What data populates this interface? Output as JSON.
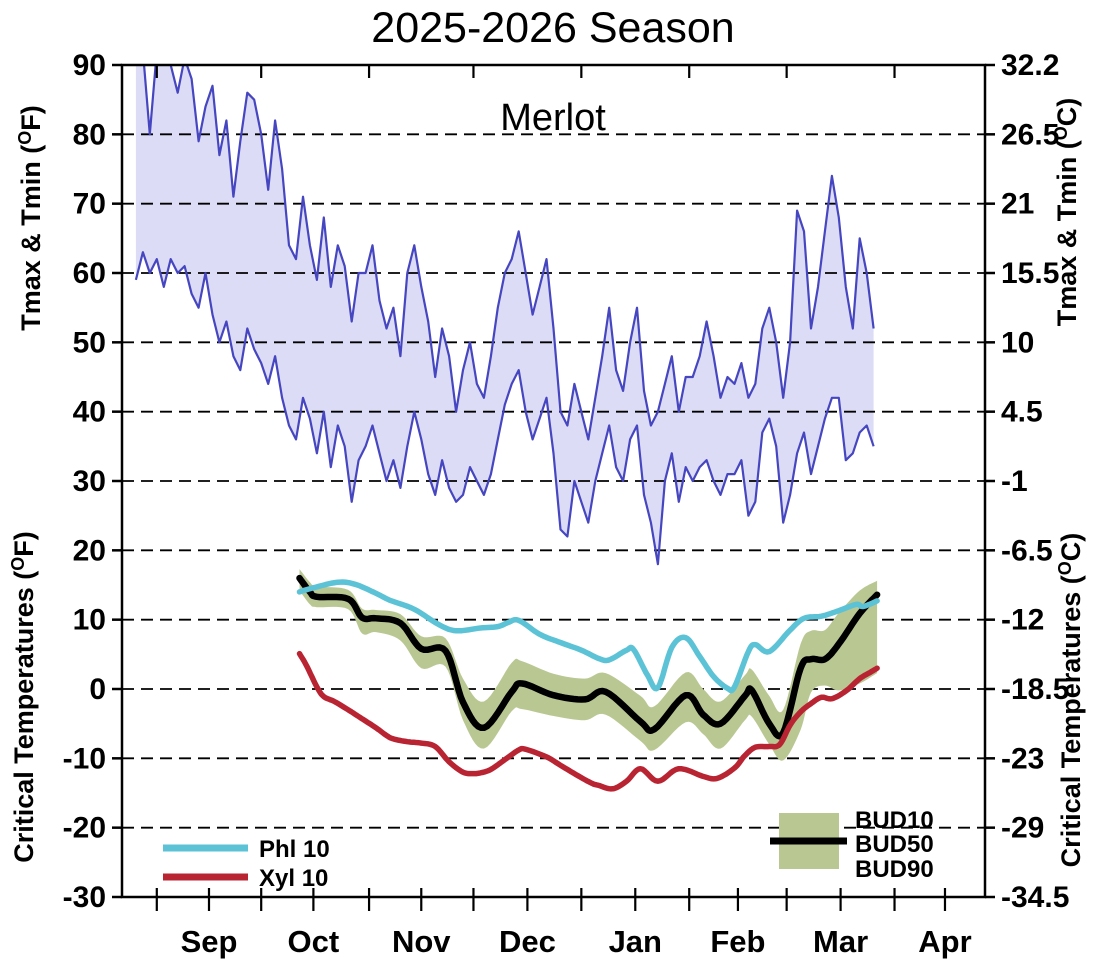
{
  "chart_data": {
    "type": "line",
    "title": "2025-2026 Season",
    "subtitle": "Merlot",
    "x_axis": {
      "month_labels": [
        "Sep",
        "Oct",
        "Nov",
        "Dec",
        "Jan",
        "Feb",
        "Mar",
        "Apr"
      ],
      "month_label_days": [
        22,
        52,
        83,
        113.5,
        144.5,
        174,
        203.5,
        233.5
      ],
      "month_boundary_days": [
        7,
        37,
        68,
        98,
        129,
        160,
        188,
        219
      ],
      "minor_tick_days": [
        22,
        52,
        83,
        113.5,
        144.5,
        174,
        203.5,
        233.5
      ],
      "domain_days": [
        -3,
        245
      ],
      "day0_date": "Aug 25"
    },
    "y_left": {
      "title_top": "Tmax & Tmin (°F)",
      "title_bottom": "Critical Temperatures (°F)",
      "ticks": [
        90,
        80,
        70,
        60,
        50,
        40,
        30,
        20,
        10,
        0,
        -10,
        -20,
        -30
      ],
      "range": [
        -30,
        90
      ]
    },
    "y_right": {
      "title_top": "Tmax & Tmin (°C)",
      "title_bottom": "Critical Temperatures (°C)",
      "tick_labels": [
        "32.2",
        "26.5",
        "21",
        "15.5",
        "10",
        "4.5",
        "-1",
        "-6.5",
        "-12",
        "-18.5",
        "-23",
        "-29",
        "-34.5"
      ]
    },
    "grid": {
      "dashed_levels": [
        80,
        70,
        60,
        50,
        40,
        30,
        20,
        10,
        0,
        -10,
        -20
      ],
      "style": "dashed-black"
    },
    "colors": {
      "tband_fill": "#dcdcf6",
      "tband_line": "#4646c0",
      "phl": "#5cc2d6",
      "xyl": "#b92433",
      "bud_band": "#b9c893",
      "bud50": "#000000"
    },
    "series": [
      {
        "name": "Tmax",
        "unit": "F",
        "x_start_day": 1,
        "x_step": 2,
        "values": [
          91,
          92,
          80,
          92,
          91,
          90,
          86,
          91,
          88,
          79,
          84,
          87,
          77,
          82,
          71,
          79,
          86,
          85,
          80,
          72,
          82,
          75,
          64,
          62,
          71,
          64,
          59,
          68,
          58,
          64,
          61,
          53,
          60,
          60,
          64,
          56,
          52,
          55,
          48,
          60,
          64,
          58,
          53,
          45,
          52,
          48,
          40,
          46,
          50,
          44,
          42,
          48,
          55,
          60,
          62,
          66,
          60,
          54,
          58,
          62,
          52,
          40,
          38,
          44,
          40,
          36,
          42,
          48,
          55,
          46,
          43,
          50,
          55,
          43,
          38,
          40,
          44,
          48,
          40,
          45,
          45,
          48,
          53,
          48,
          42,
          45,
          44,
          47,
          42,
          44,
          52,
          55,
          50,
          42,
          50,
          69,
          66,
          52,
          58,
          66,
          74,
          68,
          58,
          52,
          65,
          60,
          52
        ]
      },
      {
        "name": "Tmin",
        "unit": "F",
        "x_start_day": 1,
        "x_step": 2,
        "values": [
          59,
          63,
          60,
          62,
          58,
          62,
          60,
          61,
          57,
          55,
          60,
          54,
          50,
          53,
          48,
          46,
          52,
          49,
          47,
          44,
          48,
          42,
          38,
          36,
          42,
          39,
          34,
          40,
          32,
          38,
          35,
          27,
          33,
          35,
          38,
          34,
          30,
          33,
          29,
          35,
          40,
          36,
          31,
          28,
          33,
          29,
          27,
          28,
          32,
          30,
          28,
          31,
          36,
          41,
          44,
          46,
          40,
          36,
          39,
          42,
          34,
          23,
          22,
          30,
          27,
          24,
          30,
          34,
          38,
          32,
          30,
          36,
          38,
          28,
          24,
          18,
          30,
          34,
          27,
          32,
          30,
          32,
          33,
          30,
          28,
          31,
          31,
          33,
          25,
          27,
          37,
          39,
          35,
          24,
          28,
          34,
          37,
          31,
          35,
          39,
          42,
          42,
          33,
          34,
          37,
          38,
          35
        ]
      },
      {
        "name": "Phl 10",
        "unit": "F",
        "x_days": [
          48,
          52,
          59,
          64,
          70,
          74,
          81,
          88,
          93,
          100,
          105,
          108,
          111,
          117,
          123,
          129,
          134,
          137,
          142,
          144,
          148,
          151,
          155,
          159,
          163,
          167,
          171,
          173,
          177,
          179,
          183,
          189,
          193,
          198,
          203,
          208,
          210,
          214
        ],
        "values": [
          14.0,
          14.6,
          15.4,
          15.1,
          13.8,
          12.8,
          11.5,
          9.3,
          8.4,
          8.8,
          9.0,
          9.6,
          9.9,
          7.9,
          6.7,
          5.6,
          4.4,
          4.2,
          5.6,
          5.7,
          2.0,
          0.2,
          6.0,
          7.4,
          4.7,
          1.8,
          0.1,
          0.3,
          5.4,
          6.4,
          5.4,
          8.5,
          10.2,
          10.5,
          11.3,
          12.2,
          11.9,
          12.7
        ]
      },
      {
        "name": "Xyl 10",
        "unit": "F",
        "x_days": [
          48,
          50,
          53,
          55,
          58,
          62,
          66,
          70,
          73,
          75,
          79,
          83,
          87,
          91,
          95,
          98,
          100,
          103,
          107,
          111,
          113,
          119,
          123,
          128,
          132,
          134,
          138,
          142,
          146,
          151,
          157,
          164,
          168,
          173,
          176,
          179,
          183,
          186,
          189,
          192,
          195,
          198,
          201,
          205,
          209,
          212,
          214
        ],
        "values": [
          5.1,
          3.4,
          0.3,
          -1.1,
          -1.8,
          -3.0,
          -4.3,
          -5.6,
          -6.7,
          -7.2,
          -7.6,
          -7.8,
          -8.3,
          -10.5,
          -12.0,
          -12.2,
          -12.1,
          -11.6,
          -10.2,
          -8.8,
          -8.7,
          -9.8,
          -11.0,
          -12.5,
          -13.6,
          -13.9,
          -14.4,
          -13.3,
          -11.5,
          -13.3,
          -11.5,
          -12.6,
          -12.9,
          -11.4,
          -9.6,
          -8.4,
          -8.3,
          -8.0,
          -5.2,
          -3.3,
          -2.1,
          -1.2,
          -1.4,
          -0.3,
          1.5,
          2.4,
          3.0
        ]
      },
      {
        "name": "BUD10",
        "unit": "F",
        "x_days": [
          48,
          51,
          53,
          62,
          66,
          70,
          77,
          83,
          90,
          95,
          101,
          109,
          112,
          121,
          130,
          136,
          146,
          150,
          159,
          164,
          169,
          176,
          178,
          183,
          187,
          192,
          195,
          199,
          203,
          209,
          214
        ],
        "values": [
          17.3,
          15.4,
          14.8,
          14.3,
          11.6,
          11.4,
          10.8,
          7.6,
          7.3,
          1.5,
          -1.8,
          3.8,
          4.0,
          2.2,
          1.5,
          2.3,
          -1.0,
          -2.5,
          2.4,
          0.0,
          -1.8,
          2.0,
          2.8,
          -1.0,
          -3.0,
          6.5,
          8.4,
          8.5,
          11.0,
          14.2,
          15.6
        ]
      },
      {
        "name": "BUD50",
        "unit": "F",
        "x_days": [
          48,
          51,
          53,
          62,
          66,
          70,
          77,
          83,
          90,
          95,
          101,
          109,
          112,
          121,
          130,
          136,
          146,
          150,
          159,
          164,
          169,
          176,
          178,
          183,
          187,
          192,
          195,
          199,
          203,
          209,
          214
        ],
        "values": [
          16.0,
          14.0,
          13.3,
          13.0,
          10.3,
          10.2,
          9.5,
          5.8,
          5.5,
          -1.9,
          -5.6,
          -0.4,
          0.8,
          -0.9,
          -1.5,
          -0.4,
          -4.7,
          -5.8,
          -0.9,
          -3.7,
          -5.0,
          -1.0,
          -0.2,
          -5.0,
          -6.3,
          3.0,
          4.3,
          4.3,
          6.5,
          10.9,
          13.6
        ]
      },
      {
        "name": "BUD90",
        "unit": "F",
        "x_days": [
          48,
          51,
          53,
          62,
          66,
          70,
          77,
          83,
          90,
          95,
          101,
          109,
          112,
          121,
          130,
          136,
          146,
          150,
          159,
          164,
          169,
          176,
          178,
          183,
          187,
          192,
          195,
          199,
          203,
          209,
          214
        ],
        "values": [
          14.2,
          12.2,
          11.8,
          11.5,
          8.0,
          8.2,
          7.0,
          3.0,
          3.2,
          -4.5,
          -8.6,
          -3.2,
          -2.9,
          -3.9,
          -4.5,
          -3.7,
          -7.5,
          -8.8,
          -4.8,
          -6.5,
          -8.6,
          -4.5,
          -4.0,
          -8.0,
          -10.3,
          -5.9,
          -0.5,
          0.5,
          -0.2,
          0.8,
          2.3
        ]
      }
    ],
    "legends": {
      "lines": [
        {
          "label": "Phl 10"
        },
        {
          "label": "Xyl 10"
        }
      ],
      "bud": [
        {
          "label": "BUD10"
        },
        {
          "label": "BUD50"
        },
        {
          "label": "BUD90"
        }
      ]
    }
  }
}
